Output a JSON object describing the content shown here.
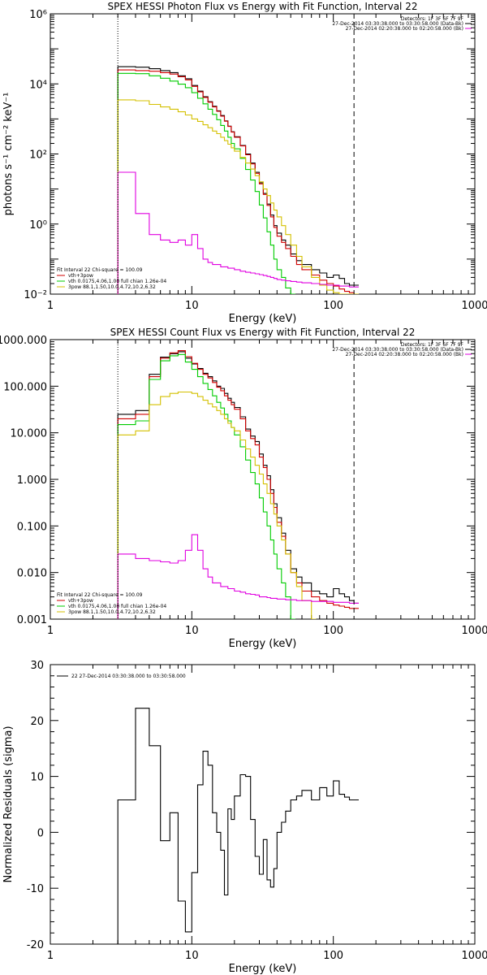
{
  "chart_data": [
    {
      "type": "line",
      "title": "SPEX HESSI Photon Flux vs Energy with Fit Function, Interval 22",
      "xlabel": "Energy (keV)",
      "ylabel": "photons s⁻¹ cm⁻² keV⁻¹",
      "xscale": "log",
      "yscale": "log",
      "xlim": [
        1,
        1000
      ],
      "ylim": [
        0.01,
        1000000
      ],
      "x_ticks": [
        "1",
        "10",
        "100",
        "1000"
      ],
      "y_ticks": [
        "10⁻²",
        "10⁰",
        "10²",
        "10⁴",
        "10⁶"
      ],
      "legend_top": [
        "Detectors: 1F 3F 6F 7F 9F",
        "27-Dec-2014 03:30:38.000 to 03:30:58.000 (Data-Bk)",
        "27-Dec-2014 02:20:38.000 to 02:20:58.000 (Bk)"
      ],
      "legend_bottom": [
        "Fit Interval 22   Chi-square = 100.09",
        "vth+3pow",
        "vth 0.0175,4.06,1.00  full chian 1.26e-04",
        "3pow 88.1,1.50,10.0,4.72,10.2,6.32"
      ],
      "vlines": [
        {
          "x": 3,
          "style": "dotted"
        },
        {
          "x": 140,
          "style": "dashed"
        }
      ],
      "series": [
        {
          "name": "Data-Bk",
          "color": "#000000",
          "step": true,
          "x": [
            3,
            4,
            5,
            6,
            7,
            8,
            9,
            10,
            11,
            12,
            13,
            14,
            15,
            16,
            17,
            18,
            19,
            20,
            22,
            24,
            26,
            28,
            30,
            32,
            34,
            36,
            38,
            40,
            43,
            46,
            50,
            55,
            60,
            70,
            80,
            90,
            100,
            110,
            120,
            130,
            140
          ],
          "y": [
            31000,
            30000,
            27000,
            24000,
            21000,
            17000,
            14000,
            9000,
            6200,
            4300,
            3100,
            2300,
            1700,
            1250,
            880,
            620,
            430,
            310,
            175,
            100,
            55,
            30,
            15,
            7.5,
            3.7,
            1.8,
            0.9,
            0.55,
            0.35,
            0.25,
            0.14,
            0.09,
            0.07,
            0.05,
            0.04,
            0.03,
            0.035,
            0.028,
            0.02,
            0.018,
            0.018
          ]
        },
        {
          "name": "vth+3pow",
          "color": "#d00000",
          "step": true,
          "x": [
            3,
            4,
            5,
            6,
            7,
            8,
            9,
            10,
            11,
            12,
            13,
            14,
            15,
            16,
            17,
            18,
            19,
            20,
            22,
            24,
            26,
            28,
            30,
            32,
            34,
            36,
            38,
            40,
            43,
            46,
            50,
            55,
            60,
            70,
            80,
            90,
            100,
            110,
            120,
            130,
            140
          ],
          "y": [
            25000,
            24000,
            23000,
            21000,
            19000,
            16000,
            13000,
            8500,
            5900,
            4100,
            3000,
            2200,
            1650,
            1200,
            860,
            610,
            420,
            300,
            170,
            95,
            52,
            28,
            14,
            7,
            3.4,
            1.6,
            0.8,
            0.45,
            0.3,
            0.2,
            0.12,
            0.07,
            0.05,
            0.035,
            0.025,
            0.02,
            0.017,
            0.014,
            0.012,
            0.011,
            0.01
          ]
        },
        {
          "name": "vth",
          "color": "#00cc00",
          "step": true,
          "x": [
            3,
            4,
            5,
            6,
            7,
            8,
            9,
            10,
            11,
            12,
            13,
            14,
            15,
            16,
            17,
            18,
            19,
            20,
            22,
            24,
            26,
            28,
            30,
            32,
            34,
            36,
            38,
            40,
            43,
            46,
            50
          ],
          "y": [
            20000,
            19500,
            17000,
            14500,
            12000,
            9800,
            7800,
            5600,
            3900,
            2700,
            1900,
            1350,
            950,
            650,
            450,
            300,
            200,
            140,
            75,
            36,
            18,
            8.5,
            3.5,
            1.5,
            0.6,
            0.25,
            0.1,
            0.05,
            0.03,
            0.015,
            0.01
          ]
        },
        {
          "name": "3pow",
          "color": "#d4c000",
          "step": true,
          "x": [
            3,
            4,
            5,
            6,
            7,
            8,
            9,
            10,
            11,
            12,
            13,
            14,
            15,
            16,
            17,
            18,
            19,
            20,
            22,
            24,
            26,
            28,
            30,
            32,
            34,
            36,
            38,
            40,
            43,
            46,
            50,
            55,
            60,
            70,
            80,
            90,
            100,
            110,
            120,
            130,
            140
          ],
          "y": [
            3500,
            3300,
            2600,
            2200,
            1900,
            1600,
            1300,
            1000,
            850,
            680,
            560,
            450,
            380,
            300,
            240,
            190,
            150,
            120,
            80,
            55,
            37,
            24,
            16,
            10,
            6.5,
            4,
            2.5,
            1.6,
            0.9,
            0.5,
            0.25,
            0.12,
            0.06,
            0.03,
            0.018,
            0.013,
            0.011,
            0.01,
            0.01,
            0.01,
            0.01
          ]
        },
        {
          "name": "Bk",
          "color": "#e000e0",
          "step": true,
          "x": [
            3,
            4,
            5,
            6,
            7,
            8,
            9,
            10,
            11,
            12,
            13,
            14,
            16,
            18,
            20,
            22,
            24,
            26,
            28,
            30,
            32,
            34,
            36,
            38,
            40,
            43,
            46,
            50,
            55,
            60,
            70,
            80,
            90,
            100,
            110,
            120,
            130,
            140
          ],
          "y": [
            30,
            2,
            0.5,
            0.35,
            0.3,
            0.35,
            0.25,
            0.5,
            0.2,
            0.1,
            0.08,
            0.07,
            0.06,
            0.055,
            0.05,
            0.045,
            0.042,
            0.04,
            0.038,
            0.036,
            0.034,
            0.032,
            0.03,
            0.028,
            0.026,
            0.025,
            0.024,
            0.023,
            0.022,
            0.021,
            0.02,
            0.019,
            0.018,
            0.018,
            0.017,
            0.017,
            0.016,
            0.016
          ]
        }
      ]
    },
    {
      "type": "line",
      "title": "SPEX HESSI Count Flux vs Energy with Fit Function, Interval 22",
      "xlabel": "Energy (keV)",
      "ylabel": "",
      "xscale": "log",
      "yscale": "log",
      "xlim": [
        1,
        1000
      ],
      "ylim": [
        0.001,
        1000
      ],
      "x_ticks": [
        "1",
        "10",
        "100",
        "1000"
      ],
      "y_ticks": [
        "0.001",
        "0.010",
        "0.100",
        "1.000",
        "10.000",
        "100.000",
        "1000.000"
      ],
      "legend_top": [
        "Detectors: 1F 3F 6F 7F 9F",
        "27-Dec-2014 03:30:38.000 to 03:30:58.000 (Data-Bk)",
        "27-Dec-2014 02:20:38.000 to 02:20:58.000 (Bk)"
      ],
      "legend_bottom": [
        "Fit Interval 22   Chi-square = 100.09",
        "vth+3pow",
        "vth 0.0175,4.06,1.00  full chian 1.26e-04",
        "3pow 88.1,1.50,10.0,4.72,10.2,6.32"
      ],
      "vlines": [
        {
          "x": 3,
          "style": "dotted"
        },
        {
          "x": 140,
          "style": "dashed"
        }
      ],
      "series": [
        {
          "name": "Data-Bk",
          "color": "#000000",
          "step": true,
          "x": [
            3,
            4,
            5,
            6,
            7,
            8,
            9,
            10,
            11,
            12,
            13,
            14,
            15,
            16,
            17,
            18,
            19,
            20,
            22,
            24,
            26,
            28,
            30,
            32,
            34,
            36,
            38,
            40,
            43,
            46,
            50,
            55,
            60,
            70,
            80,
            90,
            100,
            110,
            120,
            130,
            140
          ],
          "y": [
            25,
            30,
            180,
            420,
            500,
            550,
            400,
            300,
            240,
            190,
            160,
            130,
            100,
            90,
            70,
            55,
            45,
            35,
            22,
            12,
            8.5,
            6.5,
            3.5,
            2,
            1.2,
            0.6,
            0.3,
            0.15,
            0.07,
            0.03,
            0.012,
            0.008,
            0.006,
            0.004,
            0.0035,
            0.003,
            0.0045,
            0.0035,
            0.003,
            0.0025,
            0.0022
          ]
        },
        {
          "name": "vth+3pow",
          "color": "#d00000",
          "step": true,
          "x": [
            3,
            4,
            5,
            6,
            7,
            8,
            9,
            10,
            11,
            12,
            13,
            14,
            15,
            16,
            17,
            18,
            19,
            20,
            22,
            24,
            26,
            28,
            30,
            32,
            34,
            36,
            38,
            40,
            43,
            46,
            50,
            55,
            60,
            70,
            80,
            90,
            100,
            110,
            120,
            130,
            140
          ],
          "y": [
            20,
            25,
            160,
            400,
            520,
            580,
            430,
            310,
            230,
            180,
            150,
            120,
            95,
            80,
            62,
            50,
            40,
            32,
            20,
            11,
            7.5,
            5.5,
            3,
            1.8,
            1,
            0.5,
            0.25,
            0.12,
            0.06,
            0.025,
            0.01,
            0.006,
            0.004,
            0.003,
            0.0025,
            0.0022,
            0.002,
            0.0019,
            0.0018,
            0.0017,
            0.0017
          ]
        },
        {
          "name": "vth",
          "color": "#00cc00",
          "step": true,
          "x": [
            3,
            4,
            5,
            6,
            7,
            8,
            9,
            10,
            11,
            12,
            13,
            14,
            15,
            16,
            17,
            18,
            19,
            20,
            22,
            24,
            26,
            28,
            30,
            32,
            34,
            36,
            38,
            40,
            43,
            46,
            50
          ],
          "y": [
            15,
            18,
            140,
            350,
            450,
            480,
            330,
            230,
            160,
            115,
            85,
            62,
            45,
            34,
            25,
            18,
            13,
            9,
            5,
            2.6,
            1.4,
            0.8,
            0.4,
            0.2,
            0.1,
            0.05,
            0.025,
            0.012,
            0.006,
            0.003,
            0.001
          ]
        },
        {
          "name": "3pow",
          "color": "#d4c000",
          "step": true,
          "x": [
            3,
            4,
            5,
            6,
            7,
            8,
            9,
            10,
            11,
            12,
            13,
            14,
            15,
            16,
            17,
            18,
            19,
            20,
            22,
            24,
            26,
            28,
            30,
            32,
            34,
            36,
            38,
            40,
            43,
            46,
            50,
            55,
            60,
            70
          ],
          "y": [
            9,
            11,
            40,
            60,
            70,
            75,
            75,
            70,
            60,
            50,
            42,
            36,
            30,
            25,
            20,
            16,
            13,
            11,
            7,
            4.5,
            3,
            2,
            1.3,
            0.8,
            0.5,
            0.3,
            0.18,
            0.1,
            0.05,
            0.025,
            0.01,
            0.005,
            0.0025,
            0.001
          ]
        },
        {
          "name": "Bk",
          "color": "#e000e0",
          "step": true,
          "x": [
            3,
            4,
            5,
            6,
            7,
            8,
            9,
            10,
            11,
            12,
            13,
            14,
            16,
            18,
            20,
            22,
            24,
            26,
            28,
            30,
            32,
            34,
            36,
            38,
            40,
            43,
            46,
            50,
            55,
            60,
            70,
            80,
            90,
            100,
            110,
            120,
            130,
            140
          ],
          "y": [
            0.025,
            0.02,
            0.018,
            0.017,
            0.016,
            0.018,
            0.03,
            0.065,
            0.03,
            0.012,
            0.008,
            0.006,
            0.005,
            0.0045,
            0.004,
            0.0038,
            0.0035,
            0.0034,
            0.0033,
            0.003,
            0.003,
            0.0029,
            0.0028,
            0.0028,
            0.0027,
            0.0027,
            0.0026,
            0.0026,
            0.0025,
            0.0025,
            0.0024,
            0.0024,
            0.0024,
            0.0023,
            0.0023,
            0.0023,
            0.0022,
            0.0022
          ]
        }
      ]
    },
    {
      "type": "line",
      "title": "",
      "xlabel": "Energy (keV)",
      "ylabel": "Normalized Residuals (sigma)",
      "xscale": "log",
      "yscale": "linear",
      "xlim": [
        1,
        1000
      ],
      "ylim": [
        -20,
        30
      ],
      "x_ticks": [
        "1",
        "10",
        "100",
        "1000"
      ],
      "y_ticks": [
        "-20",
        "-10",
        "0",
        "10",
        "20",
        "30"
      ],
      "legend_top": [
        "22  27-Dec-2014 03:30:38.000 to 03:30:58.000"
      ],
      "vlines": [],
      "series": [
        {
          "name": "22  27-Dec-2014 03:30:38.000 to 03:30:58.000",
          "color": "#000000",
          "step": true,
          "x": [
            3,
            4,
            5,
            6,
            7,
            8,
            9,
            10,
            11,
            12,
            13,
            14,
            15,
            16,
            17,
            18,
            19,
            20,
            22,
            24,
            26,
            28,
            30,
            32,
            34,
            36,
            38,
            40,
            43,
            46,
            50,
            55,
            60,
            70,
            80,
            90,
            100,
            110,
            120,
            130,
            140
          ],
          "y": [
            5.8,
            22.2,
            15.5,
            -1.5,
            3.5,
            -12.3,
            -17.8,
            -7.2,
            8.5,
            14.5,
            12,
            3.5,
            0,
            -3.2,
            -11.2,
            4.2,
            2.3,
            6.5,
            10.3,
            10,
            2.3,
            -4.3,
            -7.5,
            -1.3,
            -8.5,
            -9.8,
            -6.5,
            0,
            1.8,
            3.8,
            5.8,
            6.5,
            7.5,
            5.8,
            8,
            6.5,
            9.2,
            6.8,
            6.3,
            5.8,
            5.8
          ]
        }
      ]
    }
  ]
}
